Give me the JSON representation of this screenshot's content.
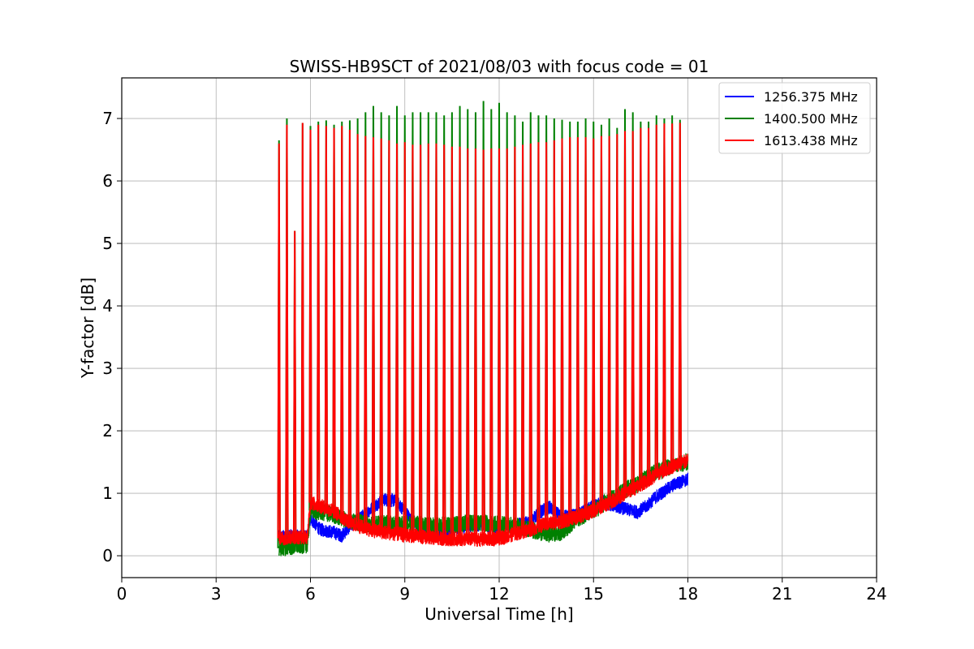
{
  "chart_data": {
    "type": "line",
    "title": "SWISS-HB9SCT of 2021/08/03 with focus code = 01",
    "xlabel": "Universal Time [h]",
    "ylabel": "Y-factor [dB]",
    "xlim": [
      0,
      24
    ],
    "ylim": [
      -0.35,
      7.65
    ],
    "xticks": [
      0,
      3,
      6,
      9,
      12,
      15,
      18,
      21,
      24
    ],
    "yticks": [
      0,
      1,
      2,
      3,
      4,
      5,
      6,
      7
    ],
    "grid": true,
    "legend_position": "top-right",
    "spikes": {
      "x": [
        5.0,
        5.25,
        5.5,
        5.75,
        6.0,
        6.25,
        6.5,
        6.75,
        7.0,
        7.25,
        7.5,
        7.75,
        8.0,
        8.25,
        8.5,
        8.75,
        9.0,
        9.25,
        9.5,
        9.75,
        10.0,
        10.25,
        10.5,
        10.75,
        11.0,
        11.25,
        11.5,
        11.75,
        12.0,
        12.25,
        12.5,
        12.75,
        13.0,
        13.25,
        13.5,
        13.75,
        14.0,
        14.25,
        14.5,
        14.75,
        15.0,
        15.25,
        15.5,
        15.75,
        16.0,
        16.25,
        16.5,
        16.75,
        17.0,
        17.25,
        17.5,
        17.75
      ],
      "green_peak": [
        6.65,
        7.0,
        5.2,
        6.93,
        6.88,
        6.95,
        6.97,
        6.9,
        6.95,
        6.97,
        7.0,
        7.1,
        7.2,
        7.1,
        7.05,
        7.2,
        7.05,
        7.1,
        7.1,
        7.1,
        7.1,
        7.05,
        7.1,
        7.2,
        7.15,
        7.1,
        7.28,
        7.15,
        7.25,
        7.1,
        7.05,
        6.95,
        7.1,
        7.05,
        7.05,
        7.0,
        6.98,
        6.95,
        6.95,
        7.0,
        6.95,
        6.9,
        7.0,
        6.85,
        7.15,
        7.1,
        6.95,
        6.95,
        7.05,
        7.0,
        7.05,
        6.98
      ],
      "red_peak": [
        6.6,
        6.9,
        5.2,
        6.93,
        6.82,
        6.9,
        6.88,
        6.85,
        6.88,
        6.82,
        6.75,
        6.72,
        6.7,
        6.68,
        6.65,
        6.6,
        6.62,
        6.58,
        6.58,
        6.6,
        6.6,
        6.58,
        6.55,
        6.55,
        6.52,
        6.52,
        6.5,
        6.52,
        6.52,
        6.52,
        6.55,
        6.58,
        6.6,
        6.62,
        6.62,
        6.65,
        6.68,
        6.7,
        6.7,
        6.7,
        6.68,
        6.72,
        6.72,
        6.75,
        6.8,
        6.8,
        6.85,
        6.85,
        6.9,
        6.92,
        6.92,
        6.93
      ]
    },
    "series": [
      {
        "name": "1256.375 MHz",
        "color": "#0000ff",
        "x": [
          5.0,
          5.5,
          5.9,
          6.0,
          6.3,
          6.7,
          7.0,
          7.3,
          7.7,
          8.0,
          8.3,
          8.7,
          9.0,
          9.3,
          9.6,
          10.0,
          10.5,
          11.0,
          11.5,
          12.0,
          12.5,
          13.0,
          13.3,
          13.6,
          14.0,
          14.5,
          15.0,
          15.3,
          15.7,
          16.0,
          16.4,
          16.7,
          17.0,
          17.3,
          17.6,
          18.0
        ],
        "y": [
          0.3,
          0.32,
          0.3,
          0.6,
          0.42,
          0.38,
          0.32,
          0.5,
          0.65,
          0.78,
          0.9,
          0.88,
          0.72,
          0.5,
          0.42,
          0.38,
          0.42,
          0.48,
          0.5,
          0.45,
          0.48,
          0.55,
          0.7,
          0.78,
          0.62,
          0.65,
          0.8,
          0.85,
          0.8,
          0.75,
          0.7,
          0.8,
          0.95,
          1.05,
          1.15,
          1.22
        ]
      },
      {
        "name": "1400.500 MHz",
        "color": "#008000",
        "x": [
          5.0,
          5.5,
          5.9,
          6.0,
          6.3,
          6.7,
          7.0,
          7.3,
          7.7,
          8.0,
          8.3,
          8.7,
          9.0,
          9.3,
          9.6,
          10.0,
          10.5,
          11.0,
          11.5,
          12.0,
          12.5,
          13.0,
          13.3,
          13.6,
          14.0,
          14.5,
          15.0,
          15.3,
          15.7,
          16.0,
          16.4,
          16.7,
          17.0,
          17.3,
          17.6,
          18.0
        ],
        "y": [
          0.12,
          0.15,
          0.18,
          0.72,
          0.7,
          0.66,
          0.6,
          0.55,
          0.52,
          0.5,
          0.52,
          0.5,
          0.5,
          0.52,
          0.5,
          0.48,
          0.5,
          0.52,
          0.52,
          0.5,
          0.48,
          0.42,
          0.38,
          0.35,
          0.38,
          0.6,
          0.72,
          0.82,
          0.95,
          1.05,
          1.15,
          1.25,
          1.35,
          1.4,
          1.45,
          1.5
        ]
      },
      {
        "name": "1613.438 MHz",
        "color": "#ff0000",
        "x": [
          5.0,
          5.5,
          5.9,
          6.0,
          6.3,
          6.7,
          7.0,
          7.3,
          7.7,
          8.0,
          8.3,
          8.7,
          9.0,
          9.3,
          9.6,
          10.0,
          10.5,
          11.0,
          11.5,
          12.0,
          12.5,
          13.0,
          13.3,
          13.6,
          14.0,
          14.5,
          15.0,
          15.3,
          15.7,
          16.0,
          16.4,
          16.7,
          17.0,
          17.3,
          17.6,
          18.0
        ],
        "y": [
          0.28,
          0.3,
          0.3,
          0.85,
          0.8,
          0.72,
          0.62,
          0.52,
          0.45,
          0.4,
          0.38,
          0.35,
          0.33,
          0.32,
          0.3,
          0.28,
          0.27,
          0.27,
          0.26,
          0.28,
          0.35,
          0.42,
          0.48,
          0.52,
          0.55,
          0.62,
          0.72,
          0.8,
          0.9,
          1.0,
          1.1,
          1.2,
          1.3,
          1.38,
          1.45,
          1.52
        ]
      }
    ]
  }
}
